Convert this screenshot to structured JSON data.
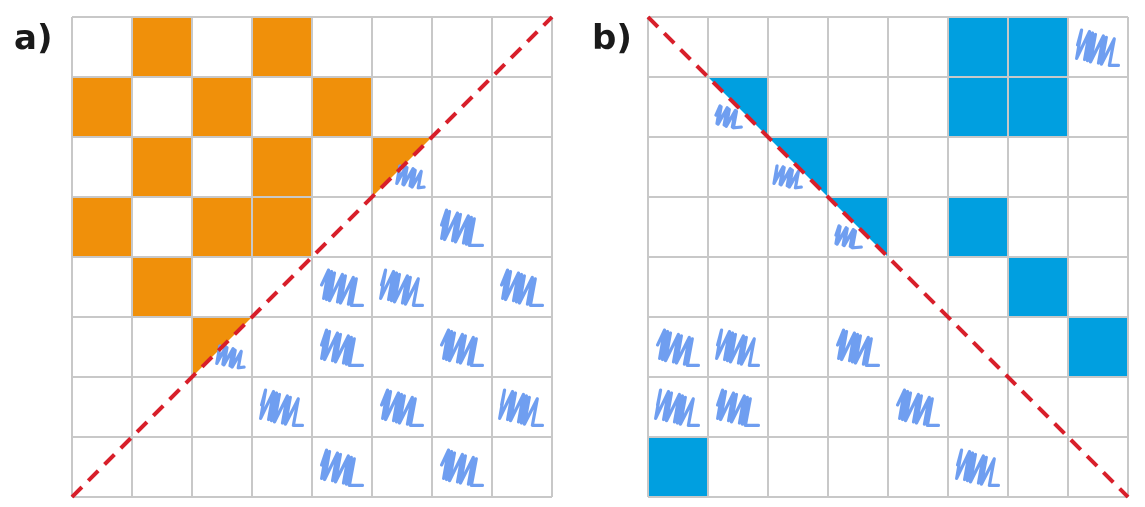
{
  "panels": [
    {
      "label": "a)",
      "grid_size": 8,
      "fill_color": "#f0900a",
      "diagonal": "bottom-left-to-top-right",
      "solid_cells": [
        [
          0,
          1
        ],
        [
          0,
          3
        ],
        [
          1,
          0
        ],
        [
          1,
          2
        ],
        [
          1,
          4
        ],
        [
          2,
          1
        ],
        [
          2,
          3
        ],
        [
          3,
          0
        ],
        [
          3,
          2
        ],
        [
          3,
          3
        ],
        [
          4,
          1
        ]
      ],
      "half_cells": [
        [
          2,
          5
        ],
        [
          5,
          2
        ]
      ],
      "scribble_cells": [
        [
          2,
          5
        ],
        [
          3,
          6
        ],
        [
          4,
          4
        ],
        [
          4,
          5
        ],
        [
          4,
          7
        ],
        [
          5,
          2
        ],
        [
          5,
          4
        ],
        [
          5,
          6
        ],
        [
          6,
          3
        ],
        [
          6,
          5
        ],
        [
          6,
          7
        ],
        [
          7,
          4
        ],
        [
          7,
          6
        ]
      ]
    },
    {
      "label": "b)",
      "grid_size": 8,
      "fill_color": "#009fe0",
      "diagonal": "top-left-to-bottom-right",
      "solid_cells": [
        [
          0,
          5
        ],
        [
          0,
          6
        ],
        [
          1,
          5
        ],
        [
          1,
          6
        ],
        [
          3,
          5
        ],
        [
          4,
          6
        ],
        [
          5,
          7
        ],
        [
          7,
          0
        ]
      ],
      "half_cells": [
        [
          1,
          1
        ],
        [
          2,
          2
        ],
        [
          3,
          3
        ]
      ],
      "scribble_cells": [
        [
          0,
          7
        ],
        [
          1,
          1
        ],
        [
          2,
          2
        ],
        [
          3,
          3
        ],
        [
          5,
          0
        ],
        [
          5,
          1
        ],
        [
          5,
          3
        ],
        [
          6,
          0
        ],
        [
          6,
          1
        ],
        [
          6,
          4
        ],
        [
          7,
          5
        ]
      ]
    }
  ],
  "colors": {
    "grid_line": "#c8c8c8",
    "diagonal_line": "#d81f2a",
    "scribble": "#6f9ef0"
  }
}
